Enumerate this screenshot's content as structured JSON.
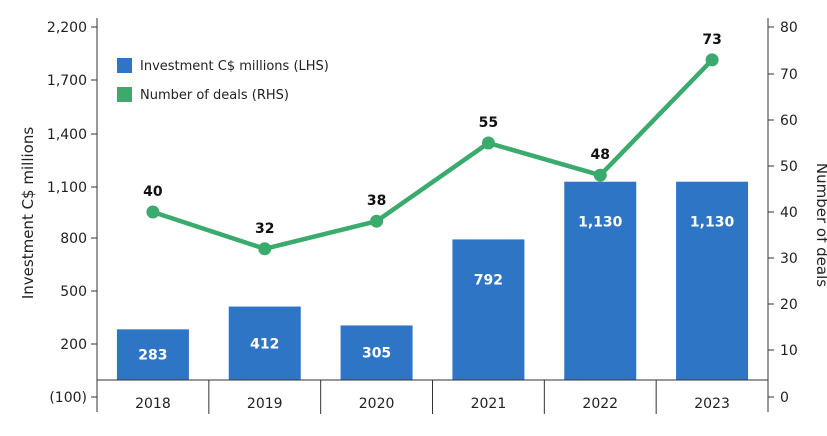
{
  "chart_data": {
    "type": "bar",
    "categories": [
      "2018",
      "2019",
      "2020",
      "2021",
      "2022",
      "2023"
    ],
    "series": [
      {
        "name": "Investment C$ millions (LHS)",
        "type": "bar",
        "axis": "left",
        "values": [
          283,
          412,
          305,
          792,
          1130,
          1130
        ],
        "labels": [
          "283",
          "412",
          "305",
          "792",
          "1,130",
          "1,130"
        ],
        "color": "#2f75c6"
      },
      {
        "name": "Number of deals (RHS)",
        "type": "line",
        "axis": "right",
        "values": [
          40,
          32,
          38,
          55,
          48,
          73
        ],
        "labels": [
          "40",
          "32",
          "38",
          "55",
          "48",
          "73"
        ],
        "color": "#3aaa6d"
      }
    ],
    "left_axis": {
      "label": "Investment C$ millions",
      "ylim": [
        -100,
        2200
      ],
      "ticks": [
        -100,
        200,
        500,
        800,
        1100,
        1400,
        1700,
        2200
      ],
      "tick_labels": [
        "(100)",
        "200",
        "500",
        "800",
        "1,100",
        "1,400",
        "1,700",
        "2,200"
      ]
    },
    "right_axis": {
      "label": "Number of deals",
      "ylim": [
        0,
        80
      ],
      "ticks": [
        0,
        10,
        20,
        30,
        40,
        50,
        60,
        70,
        80
      ],
      "tick_labels": [
        "0",
        "10",
        "20",
        "30",
        "40",
        "50",
        "60",
        "70",
        "80"
      ]
    },
    "legend": {
      "placement": "top-left"
    },
    "grid": false
  }
}
